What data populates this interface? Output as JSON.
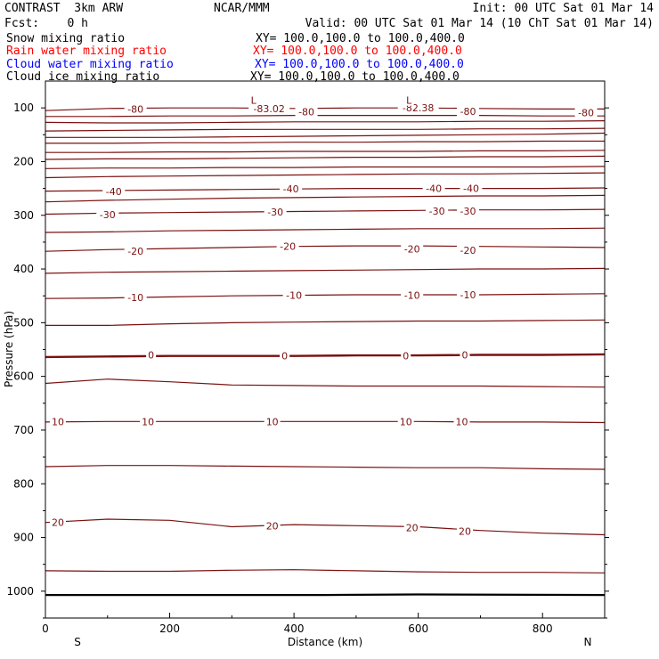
{
  "header": {
    "title_left": "CONTRAST  3km ARW",
    "title_center": "NCAR/MMM",
    "init": "Init: 00 UTC Sat 01 Mar 14",
    "fcst": "Fcst:    0 h",
    "valid": "Valid: 00 UTC Sat 01 Mar 14 (10 ChT Sat 01 Mar 14)",
    "fields": [
      {
        "name": "Snow mixing ratio",
        "xy": "XY= 100.0,100.0 to 100.0,400.0",
        "color": "#000000"
      },
      {
        "name": "Rain water mixing ratio",
        "xy": "XY= 100.0,100.0 to 100.0,400.0",
        "color": "#ff0000"
      },
      {
        "name": "Cloud water mixing ratio",
        "xy": "XY= 100.0,100.0 to 100.0,400.0",
        "color": "#0000ff"
      },
      {
        "name": "Cloud ice mixing ratio",
        "xy": "XY= 100.0,100.0 to 100.0,400.0",
        "color": "#000000"
      }
    ]
  },
  "chart_data": {
    "type": "line",
    "xlabel": "Distance (km)",
    "ylabel": "Pressure (hPa)",
    "xlim": [
      0,
      900
    ],
    "ylim": [
      1050,
      50
    ],
    "x_ticks": [
      0,
      200,
      400,
      600,
      800
    ],
    "y_ticks": [
      100,
      200,
      300,
      400,
      500,
      600,
      700,
      800,
      900,
      1000
    ],
    "x_end_labels": {
      "left": "S",
      "right": "N"
    },
    "contour_color": "#7a1010",
    "x_points": [
      0,
      100,
      200,
      300,
      400,
      500,
      600,
      700,
      800,
      900
    ],
    "contours": [
      {
        "pressures": [
          105,
          101,
          100,
          100,
          101,
          100,
          100,
          101,
          102,
          102
        ]
      },
      {
        "pressures": [
          116,
          116,
          115,
          115,
          114,
          114,
          114,
          114,
          115,
          115
        ]
      },
      {
        "pressures": [
          127,
          128,
          128,
          127,
          126,
          126,
          126,
          125,
          125,
          124
        ]
      },
      {
        "pressures": [
          143,
          142,
          141,
          140,
          140,
          140,
          140,
          139,
          139,
          138
        ]
      },
      {
        "pressures": [
          155,
          155,
          155,
          154,
          153,
          152,
          151,
          150,
          149,
          147
        ]
      },
      {
        "pressures": [
          166,
          166,
          165,
          165,
          164,
          164,
          163,
          163,
          162,
          162
        ]
      },
      {
        "pressures": [
          183,
          183,
          182,
          182,
          181,
          181,
          181,
          180,
          180,
          179
        ]
      },
      {
        "pressures": [
          196,
          195,
          195,
          194,
          193,
          192,
          192,
          191,
          191,
          190
        ]
      },
      {
        "pressures": [
          213,
          212,
          212,
          211,
          211,
          210,
          210,
          210,
          210,
          209
        ]
      },
      {
        "pressures": [
          230,
          228,
          227,
          226,
          225,
          224,
          223,
          223,
          222,
          221
        ]
      },
      {
        "pressures": [
          255,
          254,
          253,
          252,
          251,
          250,
          250,
          250,
          250,
          249
        ]
      },
      {
        "pressures": [
          275,
          272,
          270,
          268,
          267,
          266,
          265,
          264,
          264,
          263
        ]
      },
      {
        "pressures": [
          298,
          296,
          295,
          294,
          293,
          292,
          291,
          290,
          290,
          289
        ]
      },
      {
        "pressures": [
          332,
          331,
          329,
          328,
          327,
          326,
          325,
          325,
          325,
          324
        ]
      },
      {
        "pressures": [
          367,
          364,
          362,
          360,
          358,
          357,
          357,
          358,
          359,
          360
        ]
      },
      {
        "pressures": [
          408,
          406,
          405,
          404,
          403,
          402,
          401,
          400,
          400,
          399
        ]
      },
      {
        "pressures": [
          455,
          454,
          452,
          450,
          449,
          448,
          448,
          448,
          447,
          446
        ]
      },
      {
        "pressures": [
          505,
          505,
          502,
          500,
          499,
          498,
          497,
          497,
          496,
          495
        ]
      },
      {
        "pressures": [
          564,
          563,
          562,
          562,
          562,
          561,
          561,
          560,
          560,
          559
        ],
        "bold": true
      },
      {
        "pressures": [
          613,
          605,
          610,
          616,
          617,
          618,
          618,
          618,
          619,
          620
        ]
      },
      {
        "pressures": [
          685,
          684,
          684,
          684,
          684,
          684,
          684,
          685,
          685,
          686
        ]
      },
      {
        "pressures": [
          768,
          766,
          766,
          767,
          768,
          769,
          770,
          770,
          772,
          773
        ]
      },
      {
        "pressures": [
          872,
          866,
          868,
          880,
          876,
          878,
          880,
          887,
          892,
          895
        ]
      },
      {
        "pressures": [
          962,
          963,
          963,
          961,
          960,
          962,
          964,
          965,
          965,
          966
        ]
      }
    ],
    "surface": {
      "x": [
        0,
        450,
        600,
        900
      ],
      "pressures": [
        1007,
        1007,
        1006,
        1007
      ]
    },
    "labels": [
      {
        "text": "-80",
        "x": 145,
        "p": 102
      },
      {
        "text": "-83.02",
        "x": 360,
        "p": 101
      },
      {
        "text": "-80",
        "x": 420,
        "p": 107
      },
      {
        "text": "-82.38",
        "x": 600,
        "p": 100
      },
      {
        "text": "-80",
        "x": 680,
        "p": 106
      },
      {
        "text": "-80",
        "x": 870,
        "p": 109
      },
      {
        "text": "L",
        "x": 335,
        "p": 86
      },
      {
        "text": "L",
        "x": 585,
        "p": 86
      },
      {
        "text": "-40",
        "x": 110,
        "p": 256
      },
      {
        "text": "-40",
        "x": 395,
        "p": 251
      },
      {
        "text": "-40",
        "x": 625,
        "p": 250
      },
      {
        "text": "-40",
        "x": 685,
        "p": 250
      },
      {
        "text": "-30",
        "x": 100,
        "p": 299
      },
      {
        "text": "-30",
        "x": 370,
        "p": 294
      },
      {
        "text": "-30",
        "x": 630,
        "p": 292
      },
      {
        "text": "-30",
        "x": 680,
        "p": 292
      },
      {
        "text": "-20",
        "x": 145,
        "p": 367
      },
      {
        "text": "-20",
        "x": 390,
        "p": 358
      },
      {
        "text": "-20",
        "x": 590,
        "p": 363
      },
      {
        "text": "-20",
        "x": 680,
        "p": 365
      },
      {
        "text": "-10",
        "x": 145,
        "p": 453
      },
      {
        "text": "-10",
        "x": 400,
        "p": 449
      },
      {
        "text": "-10",
        "x": 590,
        "p": 449
      },
      {
        "text": "-10",
        "x": 680,
        "p": 448
      },
      {
        "text": "0",
        "x": 170,
        "p": 560
      },
      {
        "text": "0",
        "x": 385,
        "p": 562
      },
      {
        "text": "0",
        "x": 580,
        "p": 562
      },
      {
        "text": "0",
        "x": 675,
        "p": 560
      },
      {
        "text": "10",
        "x": 20,
        "p": 684
      },
      {
        "text": "10",
        "x": 165,
        "p": 684
      },
      {
        "text": "10",
        "x": 365,
        "p": 684
      },
      {
        "text": "10",
        "x": 580,
        "p": 684
      },
      {
        "text": "10",
        "x": 670,
        "p": 684
      },
      {
        "text": "20",
        "x": 20,
        "p": 872
      },
      {
        "text": "20",
        "x": 365,
        "p": 878
      },
      {
        "text": "20",
        "x": 590,
        "p": 882
      },
      {
        "text": "20",
        "x": 675,
        "p": 888
      }
    ]
  }
}
